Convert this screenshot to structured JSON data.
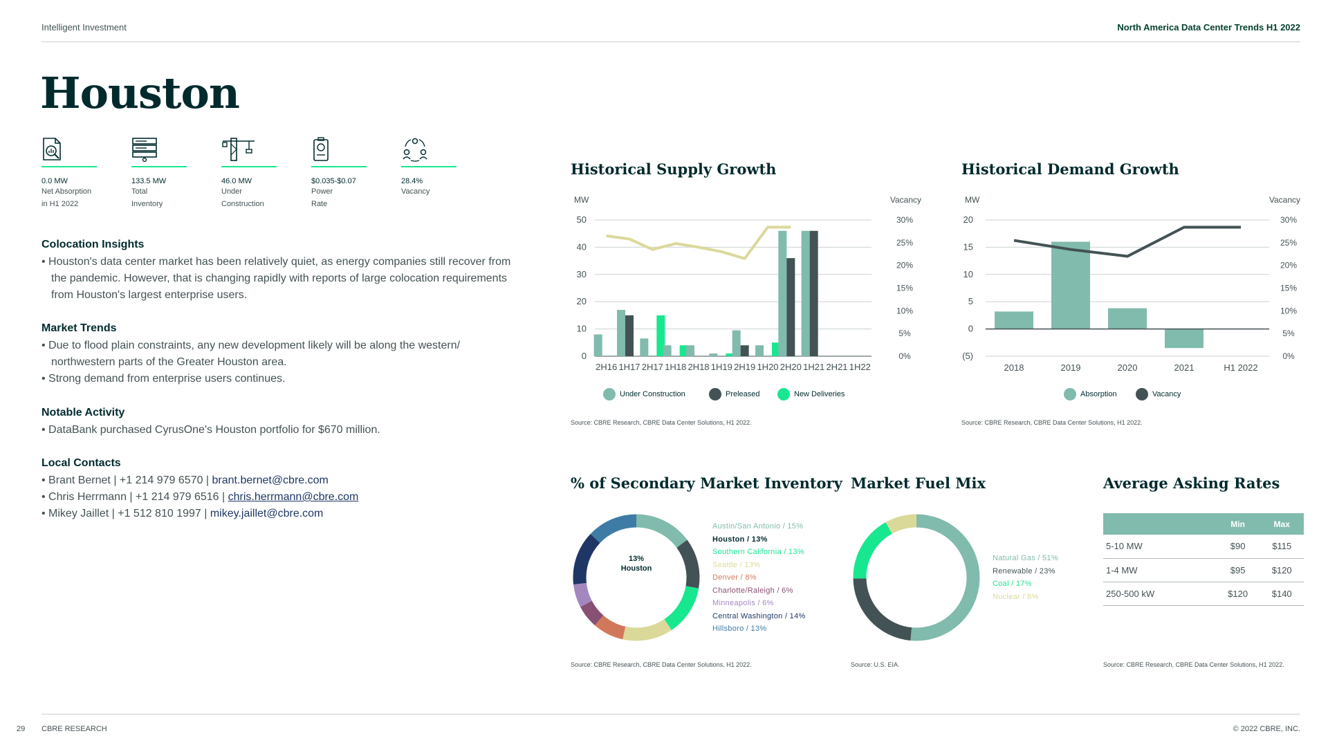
{
  "header": {
    "left": "Intelligent Investment",
    "right": "North America Data Center Trends H1 2022"
  },
  "title": "Houston",
  "stats": [
    {
      "icon": "absorption-report-icon",
      "value": "0.0 MW",
      "label_lines": [
        "Net Absorption",
        "in H1 2022"
      ]
    },
    {
      "icon": "server-rack-icon",
      "value": "133.5 MW",
      "label_lines": [
        "Total",
        "Inventory"
      ]
    },
    {
      "icon": "construction-crane-icon",
      "value": "46.0 MW",
      "label_lines": [
        "Under",
        "Construction"
      ]
    },
    {
      "icon": "power-meter-icon",
      "value": "$0.035-$0.07",
      "label_lines": [
        "Power",
        "Rate"
      ]
    },
    {
      "icon": "people-cycle-icon",
      "value": "28.4%",
      "label_lines": [
        "Vacancy"
      ]
    }
  ],
  "sections": {
    "colocation": {
      "heading": "Colocation Insights",
      "bullets": [
        "Houston's data center market has been relatively quiet, as energy companies still recover from the pandemic. However, that is changing rapidly with reports of large colocation requirements from Houston's largest enterprise users."
      ]
    },
    "market_trends": {
      "heading": "Market Trends",
      "bullets": [
        "Due to flood plain constraints, any new development likely will be along the western/ northwestern parts of the Greater Houston area.",
        "Strong demand from enterprise users continues."
      ]
    },
    "notable": {
      "heading": "Notable Activity",
      "bullets": [
        "DataBank purchased CyrusOne's Houston portfolio for $670 million."
      ]
    },
    "contacts": {
      "heading": "Local Contacts",
      "people": [
        {
          "prefix": "Brant Bernet | +1 214 979 6570 | ",
          "email": "brant.bernet@cbre.com"
        },
        {
          "prefix": "Chris Herrmann | +1 214 979 6516 | ",
          "email": "chris.herrmann@cbre.com"
        },
        {
          "prefix": "Mikey Jaillet | +1 512 810 1997 | ",
          "email": "mikey.jaillet@cbre.com"
        }
      ]
    }
  },
  "colors": {
    "under_construction": "#80bbad",
    "preleased": "#435254",
    "new_deliveries": "#17e88f",
    "vacancy_supply": "#dbd99a",
    "vacancy_demand": "#435254",
    "absorption": "#80bbad",
    "dark_green": "#012a2d"
  },
  "supply_chart": {
    "title": "Historical Supply Growth",
    "source": "Source: CBRE Research, CBRE Data Center Solutions, H1 2022.",
    "chart_data": {
      "type": "bar",
      "title": "Historical Supply Growth",
      "ylabel": "MW",
      "y2label": "Vacancy",
      "ylim": [
        0,
        50
      ],
      "y_ticks": [
        "50",
        "40",
        "30",
        "20",
        "10",
        "0"
      ],
      "y2lim": [
        0,
        30
      ],
      "y2_ticks": [
        "30%",
        "25%",
        "20%",
        "15%",
        "10%",
        "5%",
        "0%"
      ],
      "categories": [
        "2H16",
        "1H17",
        "2H17",
        "1H18",
        "2H18",
        "1H19",
        "2H19",
        "1H20",
        "2H20",
        "1H21",
        "2H21",
        "1H22"
      ],
      "series": [
        {
          "name": "Under Construction",
          "values": [
            8,
            17,
            6.5,
            4,
            4,
            1,
            9.5,
            4,
            46,
            46,
            0,
            0
          ]
        },
        {
          "name": "Preleased",
          "values": [
            0,
            15,
            0,
            0,
            0,
            0,
            4,
            0,
            36,
            46,
            0,
            0
          ]
        },
        {
          "name": "New Deliveries",
          "values": [
            0,
            0,
            15,
            4,
            0,
            1,
            0,
            5,
            0,
            0,
            0,
            0
          ]
        },
        {
          "name": "Vacancy",
          "axis": "right",
          "values": [
            26.5,
            25.8,
            23.5,
            24.8,
            24,
            23,
            21.5,
            28.4,
            28.4,
            null,
            null,
            null
          ]
        }
      ],
      "legend": [
        "Under Construction",
        "Preleased",
        "New Deliveries"
      ]
    }
  },
  "demand_chart": {
    "title": "Historical Demand Growth",
    "source": "Source: CBRE Research, CBRE Data Center Solutions, H1 2022.",
    "chart_data": {
      "type": "bar",
      "title": "Historical Demand Growth",
      "ylabel": "MW",
      "y2label": "Vacancy",
      "ylim": [
        -5,
        20
      ],
      "y_ticks": [
        "20",
        "15",
        "10",
        "5",
        "0",
        "(5)"
      ],
      "y2lim": [
        0,
        30
      ],
      "y2_ticks": [
        "30%",
        "25%",
        "20%",
        "15%",
        "10%",
        "5%",
        "0%"
      ],
      "categories": [
        "2018",
        "2019",
        "2020",
        "2021",
        "H1 2022"
      ],
      "series": [
        {
          "name": "Absorption",
          "values": [
            3.2,
            16,
            3.8,
            -3.5,
            0
          ]
        },
        {
          "name": "Vacancy",
          "axis": "right",
          "values": [
            25.5,
            23.5,
            22,
            28.4,
            28.4
          ]
        }
      ],
      "legend": [
        "Absorption",
        "Vacancy"
      ]
    }
  },
  "inventory_chart": {
    "title": "% of Secondary Market Inventory",
    "center_line1": "13%",
    "center_line2": "Houston",
    "source": "Source: CBRE Research, CBRE Data Center Solutions, H1 2022.",
    "chart_data": {
      "type": "pie",
      "title": "% of Secondary Market Inventory",
      "slices": [
        {
          "label": "Austin/San Antonio / 15%",
          "value": 15,
          "color": "#80bbad"
        },
        {
          "label": "Houston / 13%",
          "value": 13,
          "color": "#435254"
        },
        {
          "label": "Southern California / 13%",
          "value": 13,
          "color": "#17e88f"
        },
        {
          "label": "Seattle / 13%",
          "value": 13,
          "color": "#dbd99a"
        },
        {
          "label": "Denver / 8%",
          "value": 8,
          "color": "#d2785a"
        },
        {
          "label": "Charlotte/Raleigh / 6%",
          "value": 6,
          "color": "#885073"
        },
        {
          "label": "Minneapolis / 6%",
          "value": 6,
          "color": "#a388bf"
        },
        {
          "label": "Central Washington / 14%",
          "value": 14,
          "color": "#1f3765"
        },
        {
          "label": "Hillsboro / 13%",
          "value": 13,
          "color": "#3e7ca6"
        }
      ]
    }
  },
  "fuel_chart": {
    "title": "Market Fuel Mix",
    "source": "Source: U.S. EIA.",
    "chart_data": {
      "type": "pie",
      "title": "Market Fuel Mix",
      "slices": [
        {
          "label": "Natural Gas / 51%",
          "value": 51,
          "color": "#80bbad"
        },
        {
          "label": "Renewable / 23%",
          "value": 23,
          "color": "#435254"
        },
        {
          "label": "Coal / 17%",
          "value": 17,
          "color": "#17e88f"
        },
        {
          "label": "Nuclear / 8%",
          "value": 8,
          "color": "#dbd99a"
        }
      ]
    }
  },
  "rates": {
    "title": "Average Asking Rates",
    "source": "Source: CBRE Research, CBRE Data Center Solutions, H1 2022.",
    "chart_data": {
      "type": "table",
      "columns": [
        "",
        "Min",
        "Max"
      ],
      "rows": [
        [
          "5-10 MW",
          "$90",
          "$115"
        ],
        [
          "1-4 MW",
          "$95",
          "$120"
        ],
        [
          "250-500 kW",
          "$120",
          "$140"
        ]
      ]
    }
  },
  "footer": {
    "page_number": "29",
    "left": "CBRE RESEARCH",
    "right": "© 2022 CBRE, INC."
  }
}
